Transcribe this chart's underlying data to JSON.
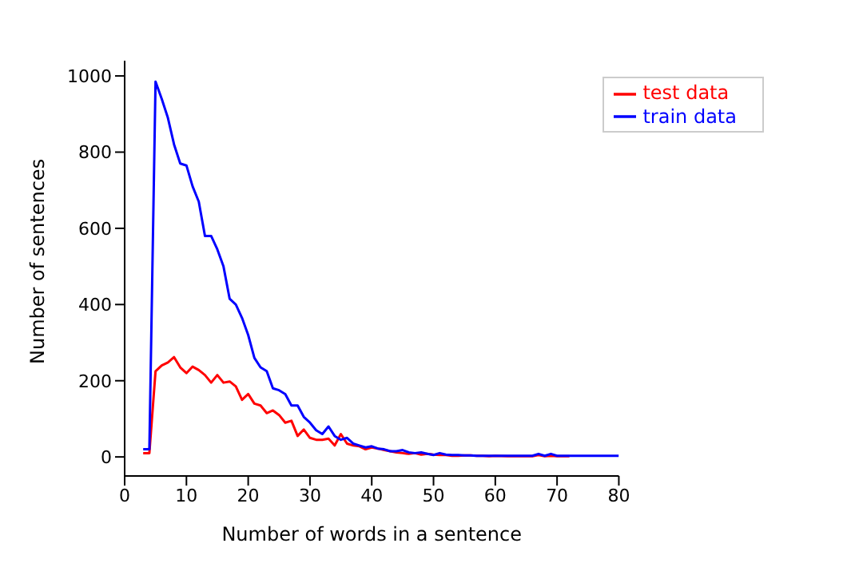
{
  "chart_data": {
    "type": "line",
    "xlabel": "Number of words in a sentence",
    "ylabel": "Number of sentences",
    "x": [
      3,
      4,
      5,
      6,
      7,
      8,
      9,
      10,
      11,
      12,
      13,
      14,
      15,
      16,
      17,
      18,
      19,
      20,
      21,
      22,
      23,
      24,
      25,
      26,
      27,
      28,
      29,
      30,
      31,
      32,
      33,
      34,
      35,
      36,
      37,
      38,
      39,
      40,
      41,
      42,
      43,
      44,
      45,
      46,
      47,
      48,
      49,
      50,
      51,
      52,
      53,
      54,
      55,
      56,
      57,
      58,
      59,
      60,
      62,
      64,
      66,
      67,
      68,
      69,
      70,
      72,
      74,
      76,
      78,
      80
    ],
    "series": [
      {
        "name": "test data",
        "color": "#ff0000",
        "values": [
          10,
          10,
          225,
          240,
          248,
          262,
          235,
          220,
          237,
          228,
          215,
          195,
          215,
          195,
          198,
          185,
          150,
          165,
          140,
          135,
          115,
          122,
          110,
          90,
          95,
          55,
          72,
          50,
          45,
          45,
          48,
          30,
          60,
          35,
          30,
          28,
          20,
          25,
          22,
          18,
          15,
          12,
          10,
          8,
          10,
          6,
          8,
          6,
          5,
          5,
          3,
          3,
          4,
          4,
          3,
          3,
          2,
          3,
          2,
          2,
          2,
          5,
          2,
          3,
          2,
          2,
          null,
          null,
          null,
          null
        ]
      },
      {
        "name": "train data",
        "color": "#0000ff",
        "values": [
          20,
          20,
          985,
          940,
          890,
          820,
          770,
          765,
          710,
          670,
          580,
          580,
          545,
          500,
          415,
          400,
          365,
          320,
          260,
          235,
          225,
          180,
          175,
          165,
          135,
          135,
          105,
          90,
          70,
          60,
          80,
          55,
          45,
          50,
          35,
          30,
          25,
          28,
          22,
          20,
          15,
          15,
          18,
          12,
          10,
          12,
          8,
          5,
          10,
          6,
          5,
          5,
          4,
          4,
          3,
          3,
          3,
          3,
          3,
          3,
          3,
          8,
          3,
          8,
          3,
          3,
          3,
          3,
          3,
          3
        ]
      }
    ],
    "xlim": [
      0,
      80
    ],
    "xticks": [
      0,
      10,
      20,
      30,
      40,
      50,
      60,
      70,
      80
    ],
    "ylim": [
      -50,
      1040
    ],
    "yticks": [
      0,
      200,
      400,
      600,
      800,
      1000
    ],
    "grid": false,
    "legend": "top right",
    "marker": "none",
    "line_style": "solid"
  }
}
